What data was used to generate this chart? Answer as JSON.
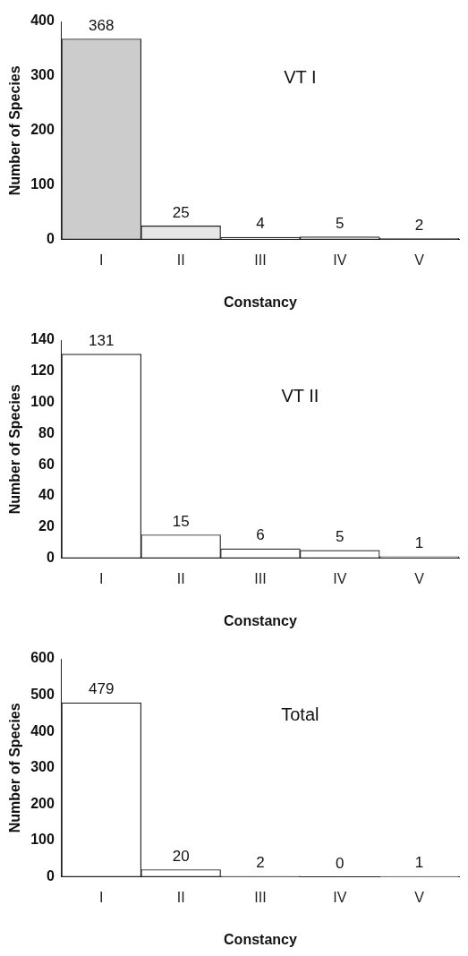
{
  "chart_data": [
    {
      "type": "bar",
      "categories": [
        "I",
        "II",
        "III",
        "IV",
        "V"
      ],
      "values": [
        368,
        25,
        4,
        5,
        2
      ],
      "colors": [
        "#cccccc",
        "#e6e6e6",
        "#ffffff",
        "#ffffff",
        "#ffffff"
      ],
      "xlabel": "Constancy",
      "ylabel": "Number of Species",
      "ylim": [
        0,
        400
      ],
      "yticks": [
        0,
        100,
        200,
        300,
        400
      ],
      "data_labels": true,
      "annotations": [
        "VT I"
      ],
      "grid": false,
      "legend": false
    },
    {
      "type": "bar",
      "categories": [
        "I",
        "II",
        "III",
        "IV",
        "V"
      ],
      "values": [
        131,
        15,
        6,
        5,
        1
      ],
      "colors": [
        "#ffffff",
        "#ffffff",
        "#ffffff",
        "#ffffff",
        "#ffffff"
      ],
      "xlabel": "Constancy",
      "ylabel": "Number of Species",
      "ylim": [
        0,
        140
      ],
      "yticks": [
        0,
        20,
        40,
        60,
        80,
        100,
        120,
        140
      ],
      "data_labels": true,
      "annotations": [
        "VT II"
      ],
      "grid": false,
      "legend": false
    },
    {
      "type": "bar",
      "categories": [
        "I",
        "II",
        "III",
        "IV",
        "V"
      ],
      "values": [
        479,
        20,
        2,
        0,
        1
      ],
      "colors": [
        "#ffffff",
        "#ffffff",
        "#ffffff",
        "#ffffff",
        "#ffffff"
      ],
      "xlabel": "Constancy",
      "ylabel": "Number of Species",
      "ylim": [
        0,
        600
      ],
      "yticks": [
        0,
        100,
        200,
        300,
        400,
        500,
        600
      ],
      "data_labels": true,
      "annotations": [
        "Total"
      ],
      "grid": false,
      "legend": false
    }
  ]
}
